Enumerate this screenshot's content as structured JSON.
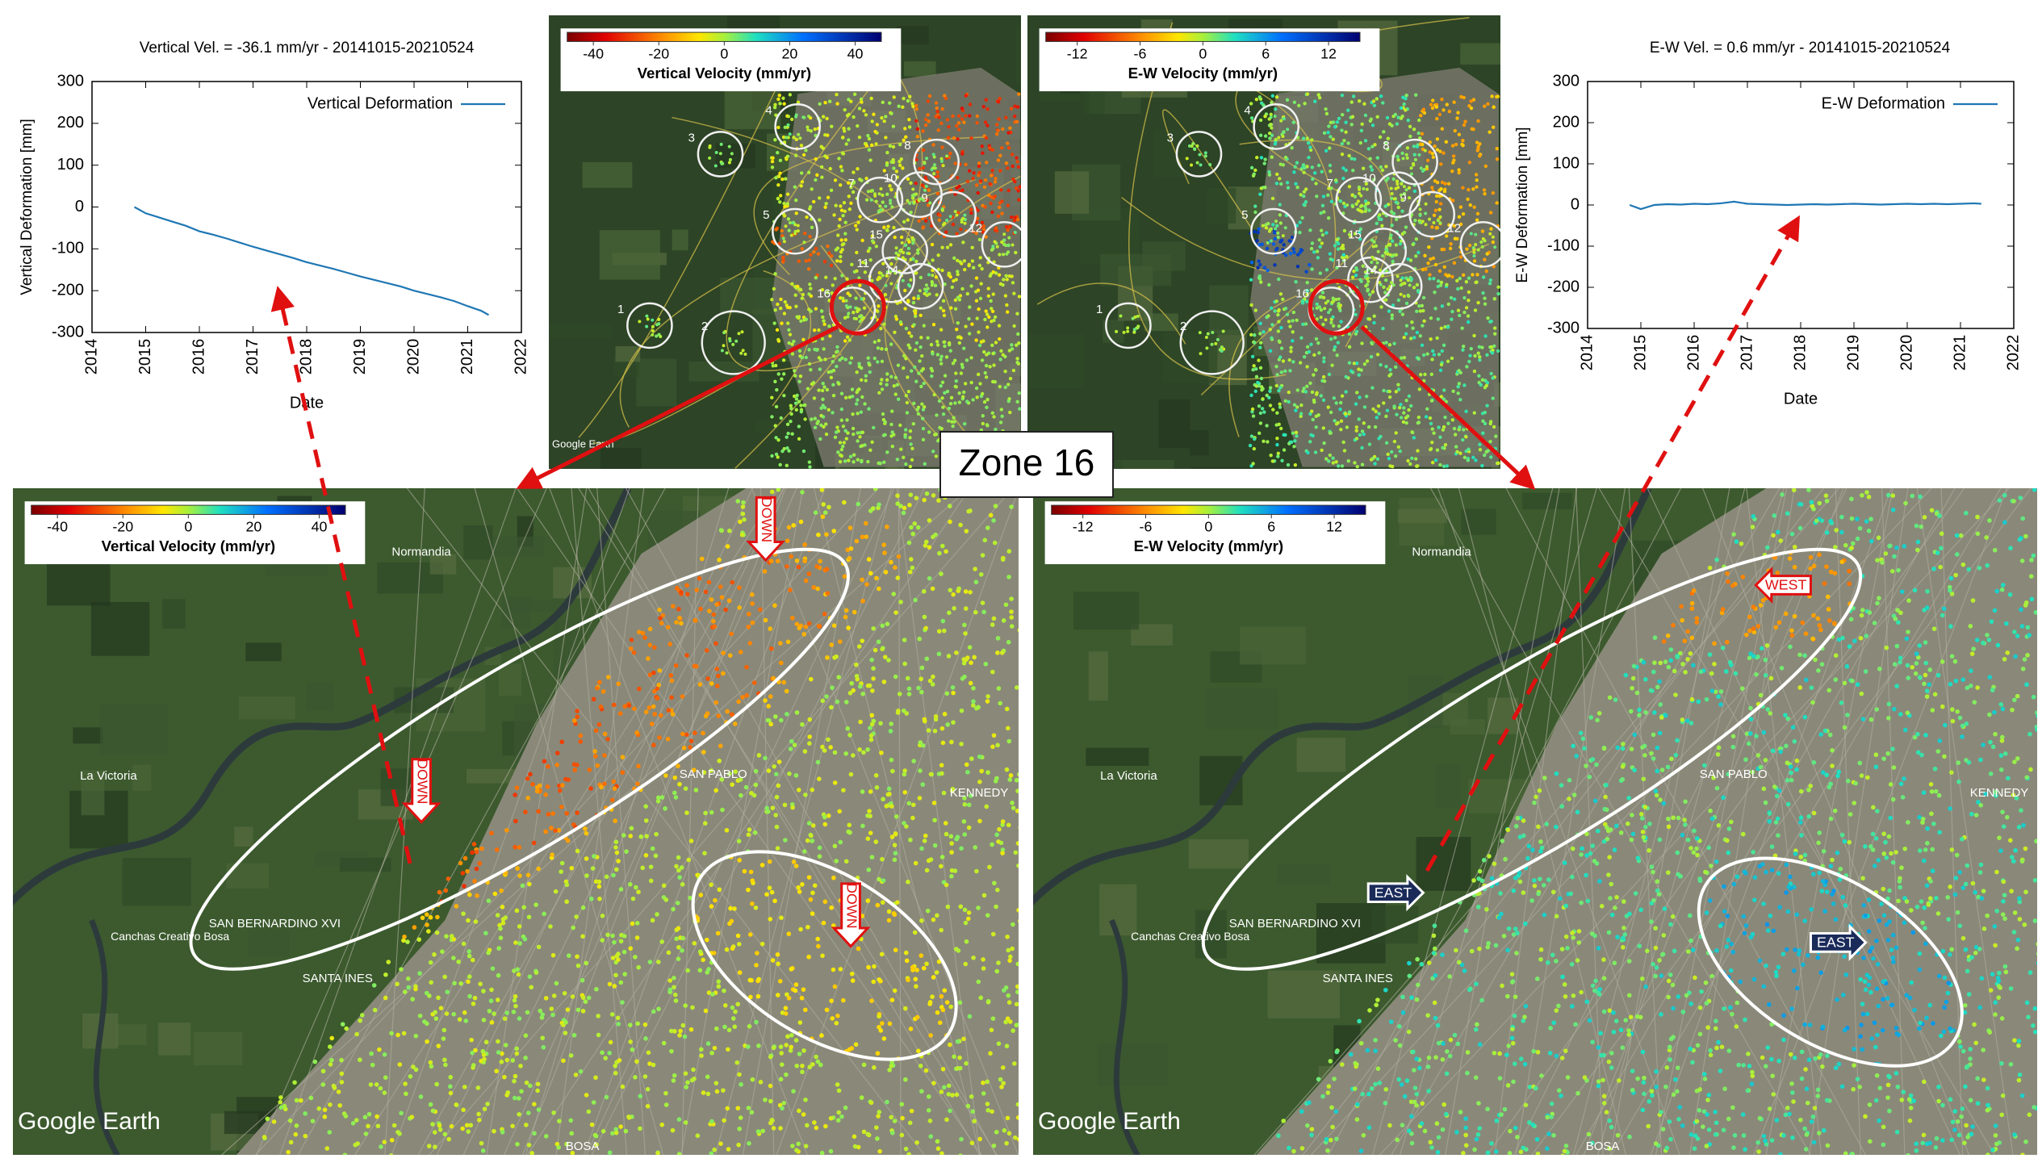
{
  "chart_data": [
    {
      "type": "line",
      "title": "Vertical Vel. = -36.1 mm/yr - 20141015-20210524",
      "xlabel": "Date",
      "ylabel": "Vertical Deformation [mm]",
      "x": [
        2014.79,
        2015.0,
        2015.25,
        2015.5,
        2015.75,
        2016.0,
        2016.25,
        2016.5,
        2016.75,
        2017.0,
        2017.25,
        2017.5,
        2017.75,
        2018.0,
        2018.25,
        2018.5,
        2018.75,
        2019.0,
        2019.25,
        2019.5,
        2019.75,
        2020.0,
        2020.25,
        2020.5,
        2020.75,
        2021.0,
        2021.25,
        2021.39
      ],
      "series": [
        {
          "name": "Vertical Deformation",
          "color": "#1f77b4",
          "values": [
            0,
            -15,
            -25,
            -35,
            -45,
            -58,
            -66,
            -75,
            -85,
            -95,
            -104,
            -113,
            -122,
            -132,
            -140,
            -148,
            -157,
            -166,
            -174,
            -182,
            -190,
            -200,
            -208,
            -216,
            -225,
            -237,
            -248,
            -258
          ]
        }
      ],
      "xlim": [
        2014,
        2022
      ],
      "xticks": [
        2014,
        2015,
        2016,
        2017,
        2018,
        2019,
        2020,
        2021,
        2022
      ],
      "ylim": [
        -300,
        300
      ],
      "yticks": [
        -300,
        -200,
        -100,
        0,
        100,
        200,
        300
      ],
      "legend": "upper right",
      "grid": false
    },
    {
      "type": "line",
      "title": "E-W Vel. = 0.6 mm/yr - 20141015-20210524",
      "xlabel": "Date",
      "ylabel": "E-W Deformation [mm]",
      "x": [
        2014.79,
        2015.0,
        2015.25,
        2015.5,
        2015.75,
        2016.0,
        2016.25,
        2016.5,
        2016.75,
        2017.0,
        2017.25,
        2017.5,
        2017.75,
        2018.0,
        2018.25,
        2018.5,
        2018.75,
        2019.0,
        2019.25,
        2019.5,
        2019.75,
        2020.0,
        2020.25,
        2020.5,
        2020.75,
        2021.0,
        2021.25,
        2021.39
      ],
      "series": [
        {
          "name": "E-W Deformation",
          "color": "#1f77b4",
          "values": [
            0,
            -10,
            0,
            2,
            1,
            3,
            2,
            4,
            8,
            3,
            2,
            1,
            0,
            1,
            2,
            1,
            2,
            3,
            2,
            1,
            2,
            3,
            2,
            3,
            2,
            3,
            4,
            3
          ]
        }
      ],
      "xlim": [
        2014,
        2022
      ],
      "xticks": [
        2014,
        2015,
        2016,
        2017,
        2018,
        2019,
        2020,
        2021,
        2022
      ],
      "ylim": [
        -300,
        300
      ],
      "yticks": [
        -300,
        -200,
        -100,
        0,
        100,
        200,
        300
      ],
      "legend": "upper right",
      "grid": false
    }
  ],
  "maps": [
    {
      "colorbar": {
        "label": "Vertical Velocity (mm/yr)",
        "ticks": [
          -40,
          -20,
          0,
          20,
          40
        ],
        "lim": [
          -48,
          48
        ]
      },
      "zones": [
        "1",
        "2",
        "3",
        "4",
        "5",
        "7",
        "8",
        "9",
        "10",
        "11",
        "12",
        "14",
        "15",
        "16"
      ],
      "credit": "Google Earth"
    },
    {
      "colorbar": {
        "label": "E-W Velocity (mm/yr)",
        "ticks": [
          -12,
          -6,
          0,
          6,
          12
        ],
        "lim": [
          -15,
          15
        ]
      },
      "zones": [
        "1",
        "2",
        "3",
        "4",
        "5",
        "7",
        "8",
        "9",
        "10",
        "11",
        "12",
        "14",
        "15",
        "16"
      ],
      "credit": "Google Earth"
    },
    {
      "colorbar": {
        "label": "Vertical Velocity (mm/yr)",
        "ticks": [
          -40,
          -20,
          0,
          20,
          40
        ],
        "lim": [
          -48,
          48
        ]
      },
      "arrows": [
        "DOWN",
        "DOWN",
        "DOWN"
      ],
      "places": [
        "Normandia",
        "La Victoria",
        "SAN PABLO",
        "KENNEDY",
        "SAN BERNARDINO XVI",
        "SANTA INES",
        "BOSA",
        "Canchas Creativo Bosa"
      ],
      "credit": "Google Earth"
    },
    {
      "colorbar": {
        "label": "E-W Velocity (mm/yr)",
        "ticks": [
          -12,
          -6,
          0,
          6,
          12
        ],
        "lim": [
          -15,
          15
        ]
      },
      "arrows": [
        "WEST",
        "EAST",
        "EAST"
      ],
      "places": [
        "Normandia",
        "La Victoria",
        "SAN PABLO",
        "KENNEDY",
        "SAN BERNARDINO XVI",
        "SANTA INES",
        "BOSA",
        "Canchas Creativo Bosa"
      ],
      "credit": "Google Earth"
    }
  ],
  "zone_label": "Zone 16"
}
